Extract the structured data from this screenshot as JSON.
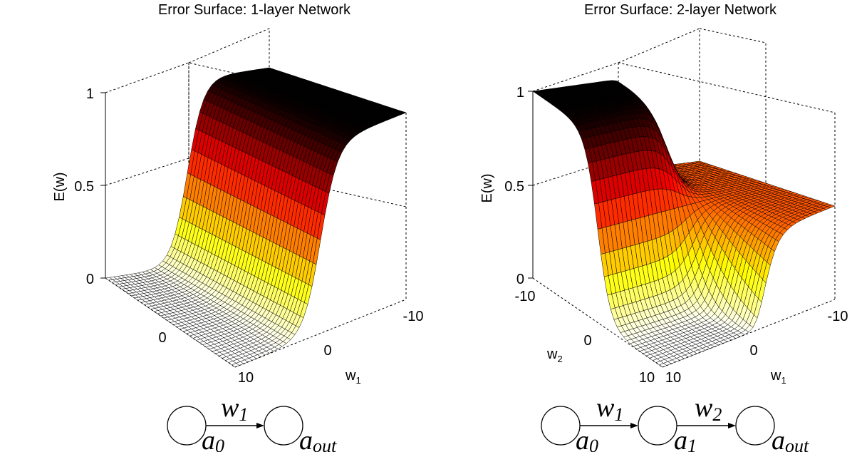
{
  "chart_data": [
    {
      "type": "surface",
      "title": "Error Surface: 1-layer Network",
      "zlabel": "E(w)",
      "xlabel_base": "w",
      "xlabel_sub": "1",
      "zticks": [
        "0",
        "0.5",
        "1"
      ],
      "xticks": [
        "10",
        "0",
        "-10"
      ],
      "yticks": [
        "0"
      ],
      "xlim": [
        -10,
        10
      ],
      "ylim": [
        -10,
        10
      ],
      "zlim": [
        0,
        1
      ],
      "function": "E = 1 / (1 + exp(-w1))",
      "colormap": "hot",
      "diagram": {
        "nodes": [
          {
            "base": "a",
            "sub": "0"
          },
          {
            "base": "a",
            "sub": "out"
          }
        ],
        "edges": [
          {
            "base": "w",
            "sub": "1"
          }
        ]
      }
    },
    {
      "type": "surface",
      "title": "Error Surface: 2-layer Network",
      "zlabel": "E(w)",
      "xlabel_base": "w",
      "xlabel_sub": "1",
      "ylabel_base": "w",
      "ylabel_sub": "2",
      "zticks": [
        "0",
        "0.5",
        "1"
      ],
      "xticks": [
        "10",
        "0",
        "-10"
      ],
      "yticks": [
        "-10",
        "0",
        "10"
      ],
      "xlim": [
        -10,
        10
      ],
      "ylim": [
        -10,
        10
      ],
      "zlim": [
        0,
        1
      ],
      "function": "E = 1 / (1 + exp(-w2 * sigmoid(w1)))",
      "colormap": "hot",
      "diagram": {
        "nodes": [
          {
            "base": "a",
            "sub": "0"
          },
          {
            "base": "a",
            "sub": "1"
          },
          {
            "base": "a",
            "sub": "out"
          }
        ],
        "edges": [
          {
            "base": "w",
            "sub": "1"
          },
          {
            "base": "w",
            "sub": "2"
          }
        ]
      }
    }
  ]
}
